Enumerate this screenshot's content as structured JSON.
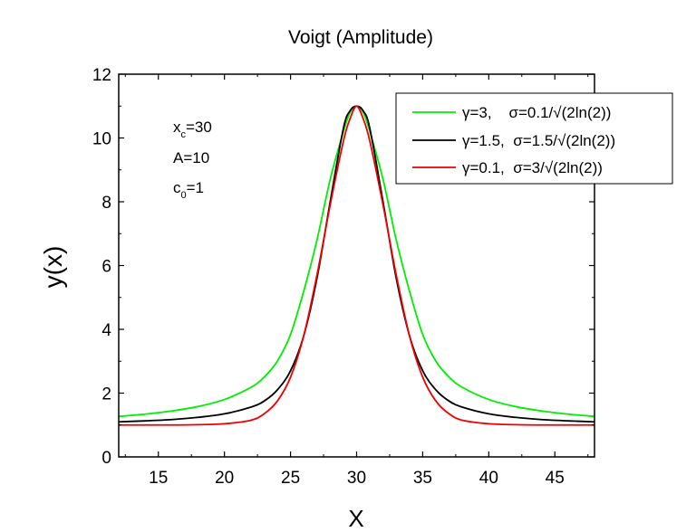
{
  "chart_data": {
    "type": "line",
    "title": "Voigt (Amplitude)",
    "xlabel": "X",
    "ylabel": "y(x)",
    "xlim": [
      12,
      48
    ],
    "ylim": [
      0,
      12
    ],
    "x_ticks": [
      15,
      20,
      25,
      30,
      35,
      40,
      45
    ],
    "y_ticks": [
      0,
      2,
      4,
      6,
      8,
      10,
      12
    ],
    "grid": false,
    "legend_position": "top-right",
    "annotations": {
      "xc_main": "x",
      "xc_sub": "c",
      "xc_value": "=30",
      "A_line": "A=10",
      "c0_main": "c",
      "c0_sub": "0",
      "c0_value": "=1"
    },
    "x": [
      12,
      14,
      16,
      18,
      20,
      22,
      23,
      24,
      25,
      26,
      27,
      28,
      29,
      29.5,
      30,
      30.5,
      31,
      32,
      33,
      34,
      35,
      36,
      37,
      38,
      40,
      42,
      44,
      46,
      48
    ],
    "series": [
      {
        "name": "γ=3,    σ=0.1/√(2ln(2))",
        "color": "#00ee00",
        "values": [
          1.27,
          1.34,
          1.44,
          1.58,
          1.8,
          2.18,
          2.5,
          3.0,
          3.84,
          5.2,
          6.8,
          8.7,
          10.2,
          10.8,
          11.0,
          10.8,
          10.2,
          8.7,
          6.8,
          5.2,
          3.84,
          3.0,
          2.5,
          2.18,
          1.8,
          1.58,
          1.44,
          1.34,
          1.27
        ]
      },
      {
        "name": "γ=1.5,  σ=1.5/√(2ln(2))",
        "color": "#000000",
        "values": [
          1.1,
          1.13,
          1.17,
          1.24,
          1.35,
          1.56,
          1.75,
          2.1,
          2.7,
          3.8,
          5.6,
          8.0,
          10.3,
          10.85,
          11.0,
          10.85,
          10.3,
          8.0,
          5.6,
          3.8,
          2.7,
          2.1,
          1.75,
          1.56,
          1.35,
          1.24,
          1.17,
          1.13,
          1.1
        ]
      },
      {
        "name": "γ=0.1,  σ=3/√(2ln(2))",
        "color": "#ee0000",
        "values": [
          1.0,
          1.0,
          1.0,
          1.01,
          1.04,
          1.15,
          1.35,
          1.75,
          2.5,
          3.8,
          5.7,
          7.9,
          9.9,
          10.6,
          11.0,
          10.6,
          9.9,
          7.9,
          5.7,
          3.8,
          2.5,
          1.75,
          1.35,
          1.15,
          1.04,
          1.01,
          1.0,
          1.0,
          1.0
        ]
      }
    ]
  }
}
